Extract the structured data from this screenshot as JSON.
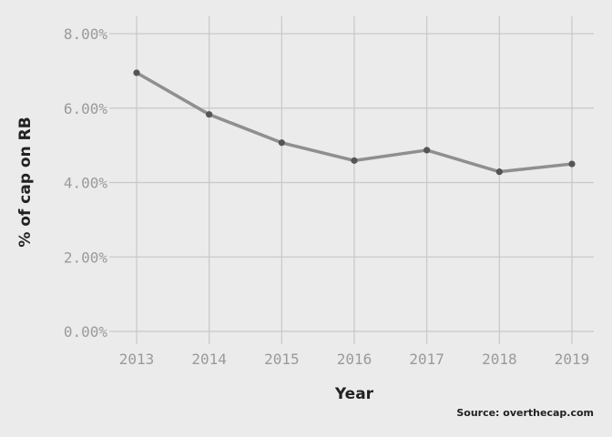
{
  "chart_data": {
    "type": "line",
    "title": "",
    "xlabel": "Year",
    "ylabel": "% of cap on RB",
    "caption": "Source: overthecap.com",
    "x": [
      2013,
      2014,
      2015,
      2016,
      2017,
      2018,
      2019
    ],
    "x_tick_labels": [
      "2013",
      "2014",
      "2015",
      "2016",
      "2017",
      "2018",
      "2019"
    ],
    "series": [
      {
        "values": [
          6.95,
          5.83,
          5.07,
          4.59,
          4.87,
          4.29,
          4.5
        ]
      }
    ],
    "ylim": [
      0,
      8
    ],
    "y_ticks": [
      0,
      2,
      4,
      6,
      8
    ],
    "y_tick_labels": [
      "0.00%",
      "2.00%",
      "4.00%",
      "6.00%",
      "8.00%"
    ],
    "grid": true,
    "line_color": "#8a8a8a",
    "point_color": "#555555",
    "background_color": "#ebebeb"
  }
}
